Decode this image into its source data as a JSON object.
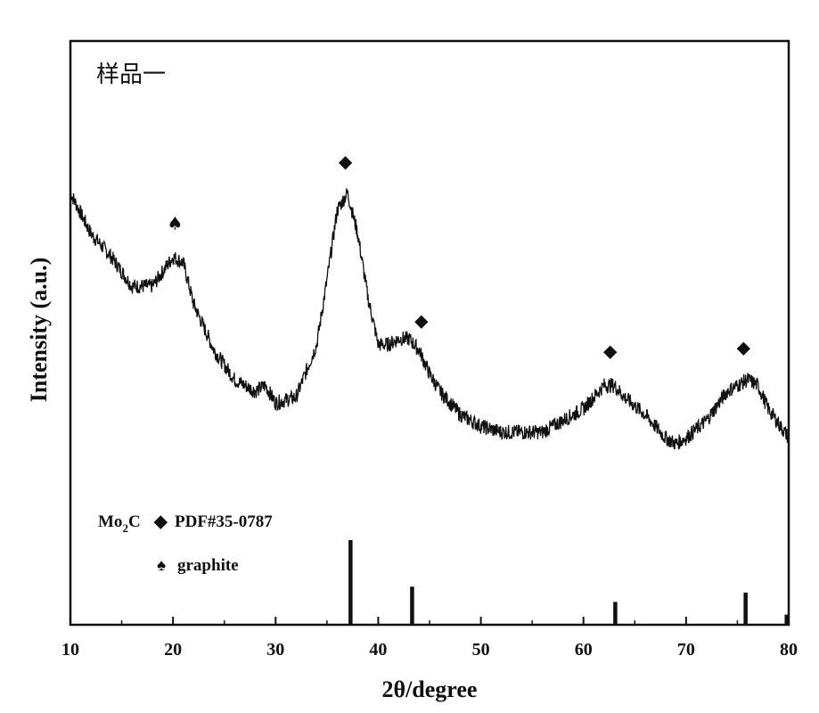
{
  "chart_data": {
    "type": "line",
    "panel_label": "样品一",
    "xlabel": "2θ/degree",
    "ylabel": "Intensity (a.u.)",
    "xlim": [
      10,
      80
    ],
    "xticks": [
      10,
      20,
      30,
      40,
      50,
      60,
      70,
      80
    ],
    "ylim": [
      0,
      100
    ],
    "y_ticks_labeled": false,
    "grid": false,
    "pattern": {
      "x": [
        10,
        12,
        14,
        16,
        18,
        20,
        21,
        22,
        24,
        26,
        28,
        29,
        30,
        32,
        34,
        35,
        36,
        37,
        38,
        39,
        40,
        41,
        42,
        43,
        44,
        45,
        46,
        48,
        50,
        52,
        54,
        56,
        58,
        60,
        62,
        63,
        64,
        66,
        68,
        69,
        70,
        72,
        74,
        76,
        77,
        78,
        80
      ],
      "y": [
        74,
        67,
        63,
        58,
        58,
        63,
        62,
        55,
        47,
        42,
        40,
        41,
        38,
        39,
        48,
        59,
        71,
        74,
        67,
        56,
        48,
        48,
        49,
        49,
        47,
        43,
        40,
        36,
        34,
        33,
        33,
        33,
        35,
        37,
        41,
        41,
        39,
        36,
        32,
        31,
        32,
        35,
        40,
        42,
        41,
        37,
        32
      ]
    },
    "reference_pattern": {
      "label": "PDF#35-0787",
      "phase": "Mo₂C",
      "x": [
        37.3,
        43.3,
        63.1,
        75.8,
        79.8
      ],
      "intensity": [
        100,
        45,
        27,
        38,
        12
      ]
    },
    "peak_markers": [
      {
        "phase": "graphite",
        "symbol": "♠",
        "x": 20.2
      },
      {
        "phase": "Mo₂C",
        "symbol": "◆",
        "x": 36.8
      },
      {
        "phase": "Mo₂C",
        "symbol": "◆",
        "x": 44.2
      },
      {
        "phase": "Mo₂C",
        "symbol": "◆",
        "x": 62.6
      },
      {
        "phase": "Mo₂C",
        "symbol": "◆",
        "x": 75.6
      }
    ],
    "legend": [
      {
        "formula_main": "Mo",
        "formula_sub": "2",
        "formula_end": "C",
        "symbol": "◆",
        "text": "PDF#35-0787"
      },
      {
        "symbol": "♠",
        "text": "graphite"
      }
    ]
  }
}
